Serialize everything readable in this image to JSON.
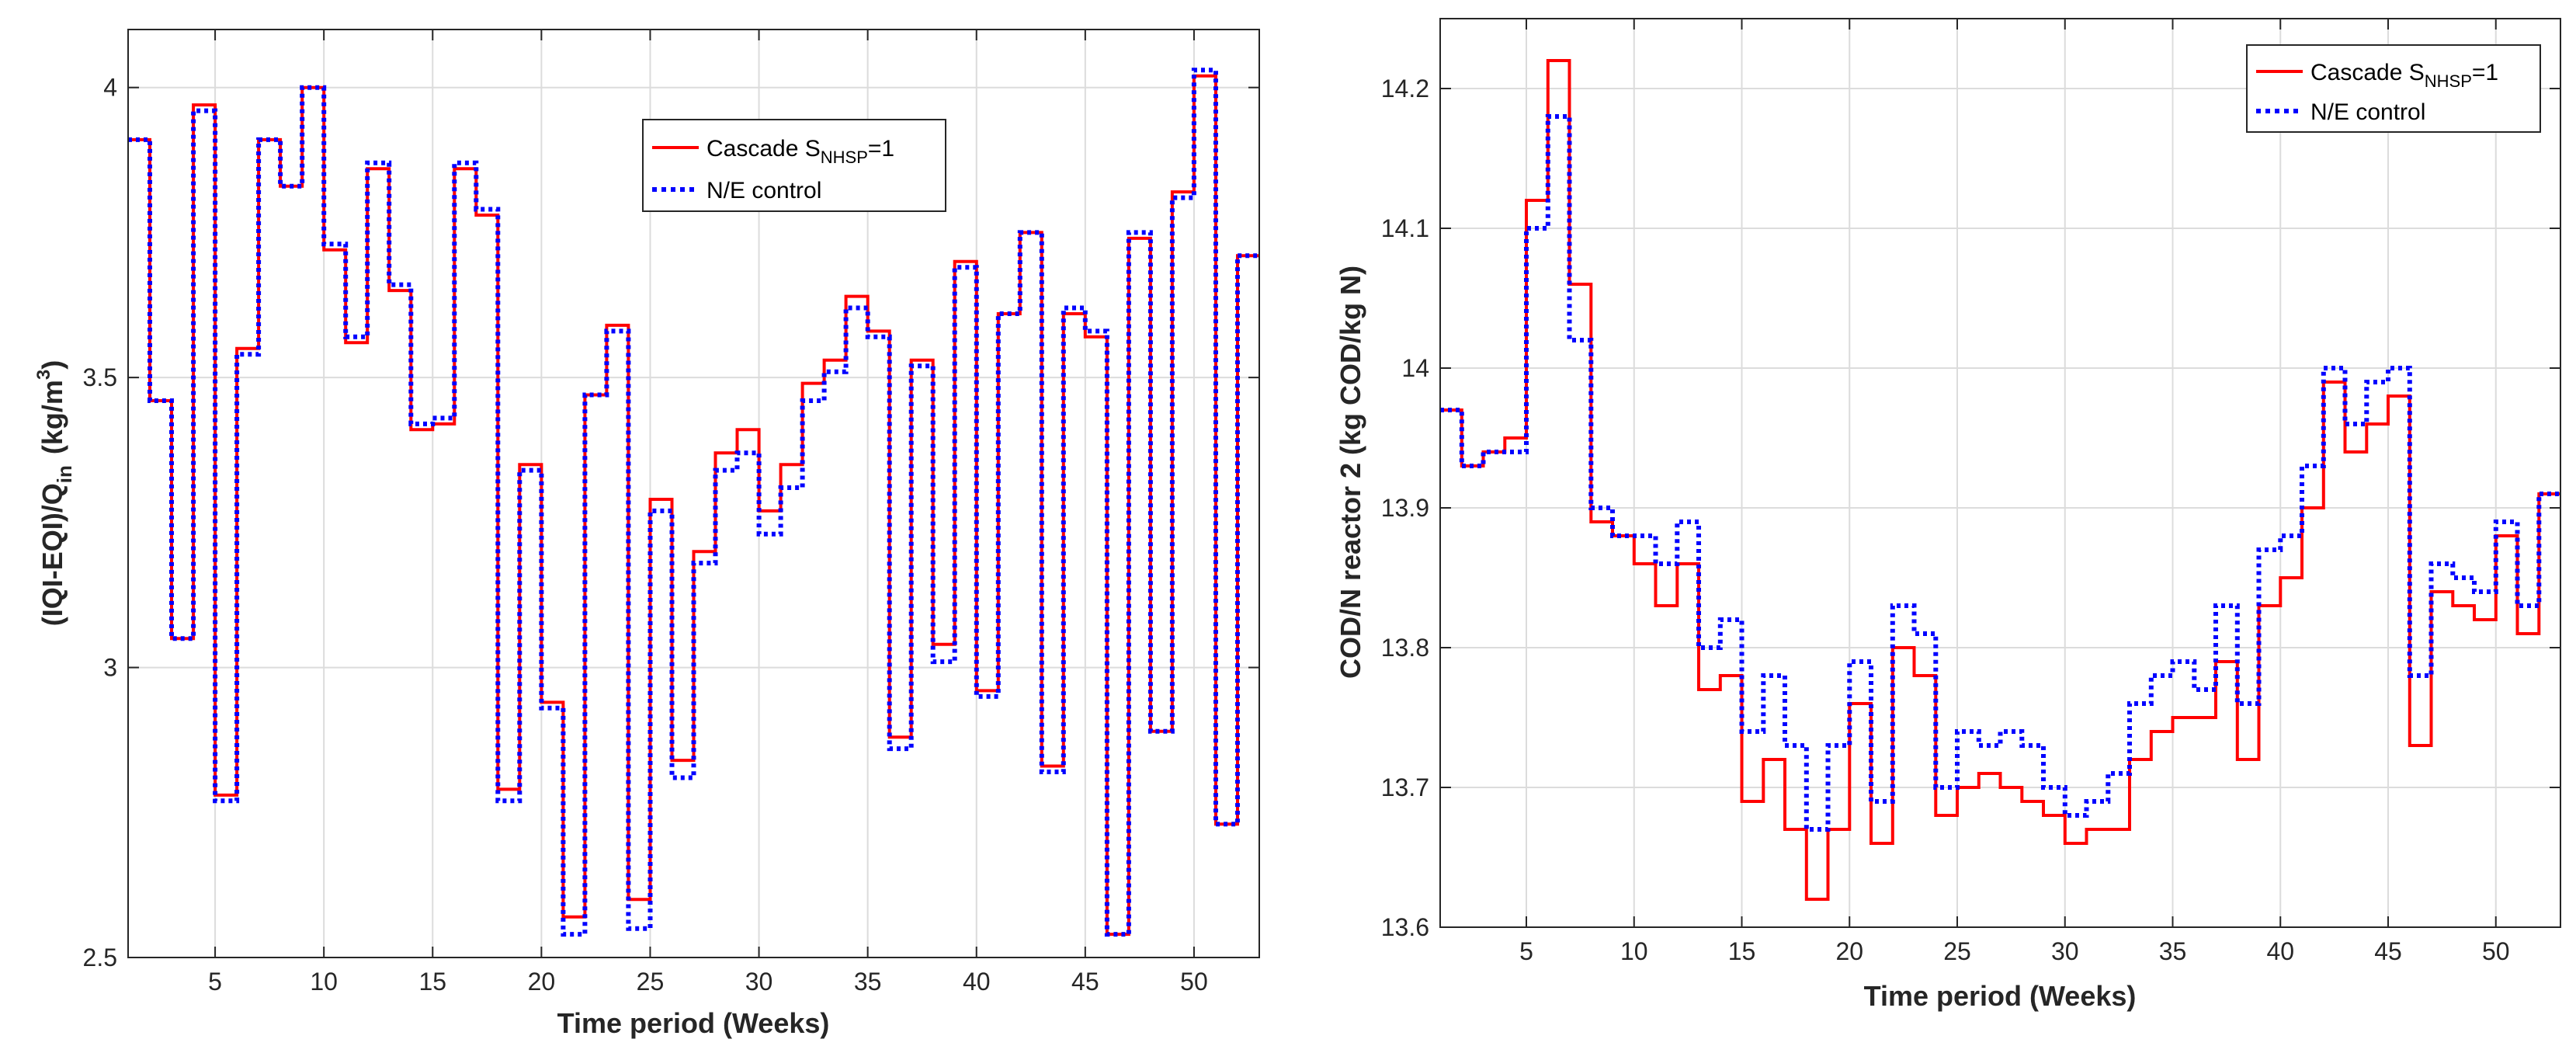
{
  "chart_data": [
    {
      "type": "line",
      "step": true,
      "title": "",
      "xlabel": "Time period (Weeks)",
      "ylabel": "(IQI-EQI)/Q_in (kg/m^3)",
      "ylabel_parts": {
        "main": "(IQI-EQI)/Q",
        "sub": "in",
        "unit_pre": "(kg/m",
        "sup": "3",
        "unit_post": ")"
      },
      "xlim": [
        1,
        53
      ],
      "ylim": [
        2.5,
        4.1
      ],
      "xticks": [
        5,
        10,
        15,
        20,
        25,
        30,
        35,
        40,
        45,
        50
      ],
      "xtick_labels": [
        "5",
        "10",
        "15",
        "20",
        "25",
        "30",
        "35",
        "40",
        "45",
        "50"
      ],
      "yticks": [
        2.5,
        3,
        3.5,
        4
      ],
      "ytick_labels": [
        "2.5",
        "3",
        "3.5",
        "4"
      ],
      "grid": true,
      "legend_position": "upper-center-right",
      "legend_labels": {
        "cascade_main": "Cascade S",
        "cascade_sub": "NHSP",
        "cascade_post": "=1",
        "ne": "N/E control"
      },
      "x": [
        1,
        2,
        3,
        4,
        5,
        6,
        7,
        8,
        9,
        10,
        11,
        12,
        13,
        14,
        15,
        16,
        17,
        18,
        19,
        20,
        21,
        22,
        23,
        24,
        25,
        26,
        27,
        28,
        29,
        30,
        31,
        32,
        33,
        34,
        35,
        36,
        37,
        38,
        39,
        40,
        41,
        42,
        43,
        44,
        45,
        46,
        47,
        48,
        49,
        50,
        51,
        52
      ],
      "series": [
        {
          "name": "Cascade S_NHSP=1",
          "color": "#ff0000",
          "dash": "solid",
          "values": [
            3.91,
            3.46,
            3.05,
            3.97,
            2.78,
            3.55,
            3.91,
            3.83,
            4.0,
            3.72,
            3.56,
            3.86,
            3.65,
            3.41,
            3.42,
            3.86,
            3.78,
            2.79,
            3.35,
            2.94,
            2.57,
            3.47,
            3.59,
            2.6,
            3.29,
            2.84,
            3.2,
            3.37,
            3.41,
            3.27,
            3.35,
            3.49,
            3.53,
            3.64,
            3.58,
            2.88,
            3.53,
            3.04,
            3.7,
            2.96,
            3.61,
            3.75,
            2.83,
            3.61,
            3.57,
            2.54,
            3.74,
            2.89,
            3.82,
            4.02,
            2.73,
            3.71
          ]
        },
        {
          "name": "N/E control",
          "color": "#0000ff",
          "dash": "dotted",
          "values": [
            3.91,
            3.46,
            3.05,
            3.96,
            2.77,
            3.54,
            3.91,
            3.83,
            4.0,
            3.73,
            3.57,
            3.87,
            3.66,
            3.42,
            3.43,
            3.87,
            3.79,
            2.77,
            3.34,
            2.93,
            2.54,
            3.47,
            3.58,
            2.55,
            3.27,
            2.81,
            3.18,
            3.34,
            3.37,
            3.23,
            3.31,
            3.46,
            3.51,
            3.62,
            3.57,
            2.86,
            3.52,
            3.01,
            3.69,
            2.95,
            3.61,
            3.75,
            2.82,
            3.62,
            3.58,
            2.54,
            3.75,
            2.89,
            3.81,
            4.03,
            2.73,
            3.71
          ]
        }
      ]
    },
    {
      "type": "line",
      "step": true,
      "title": "",
      "xlabel": "Time period (Weeks)",
      "ylabel": "COD/N reactor 2 (kg COD/kg N)",
      "xlim": [
        1,
        53
      ],
      "ylim": [
        13.6,
        14.25
      ],
      "xticks": [
        5,
        10,
        15,
        20,
        25,
        30,
        35,
        40,
        45,
        50
      ],
      "xtick_labels": [
        "5",
        "10",
        "15",
        "20",
        "25",
        "30",
        "35",
        "40",
        "45",
        "50"
      ],
      "yticks": [
        13.6,
        13.7,
        13.8,
        13.9,
        14.0,
        14.1,
        14.2
      ],
      "ytick_labels": [
        "13.6",
        "13.7",
        "13.8",
        "13.9",
        "14",
        "14.1",
        "14.2"
      ],
      "grid": true,
      "legend_position": "top-right",
      "legend_labels": {
        "cascade_main": "Cascade S",
        "cascade_sub": "NHSP",
        "cascade_post": "=1",
        "ne": "N/E control"
      },
      "x": [
        1,
        2,
        3,
        4,
        5,
        6,
        7,
        8,
        9,
        10,
        11,
        12,
        13,
        14,
        15,
        16,
        17,
        18,
        19,
        20,
        21,
        22,
        23,
        24,
        25,
        26,
        27,
        28,
        29,
        30,
        31,
        32,
        33,
        34,
        35,
        36,
        37,
        38,
        39,
        40,
        41,
        42,
        43,
        44,
        45,
        46,
        47,
        48,
        49,
        50,
        51,
        52
      ],
      "series": [
        {
          "name": "Cascade S_NHSP=1",
          "color": "#ff0000",
          "dash": "solid",
          "values": [
            13.97,
            13.93,
            13.94,
            13.95,
            14.12,
            14.22,
            14.06,
            13.89,
            13.88,
            13.86,
            13.83,
            13.86,
            13.77,
            13.78,
            13.69,
            13.72,
            13.67,
            13.62,
            13.67,
            13.76,
            13.66,
            13.8,
            13.78,
            13.68,
            13.7,
            13.71,
            13.7,
            13.69,
            13.68,
            13.66,
            13.67,
            13.67,
            13.72,
            13.74,
            13.75,
            13.75,
            13.79,
            13.72,
            13.83,
            13.85,
            13.9,
            13.99,
            13.94,
            13.96,
            13.98,
            13.73,
            13.84,
            13.83,
            13.82,
            13.88,
            13.81,
            13.91
          ]
        },
        {
          "name": "N/E control",
          "color": "#0000ff",
          "dash": "dotted",
          "values": [
            13.97,
            13.93,
            13.94,
            13.94,
            14.1,
            14.18,
            14.02,
            13.9,
            13.88,
            13.88,
            13.86,
            13.89,
            13.8,
            13.82,
            13.74,
            13.78,
            13.73,
            13.67,
            13.73,
            13.79,
            13.69,
            13.83,
            13.81,
            13.7,
            13.74,
            13.73,
            13.74,
            13.73,
            13.7,
            13.68,
            13.69,
            13.71,
            13.76,
            13.78,
            13.79,
            13.77,
            13.83,
            13.76,
            13.87,
            13.88,
            13.93,
            14.0,
            13.96,
            13.99,
            14.0,
            13.78,
            13.86,
            13.85,
            13.84,
            13.89,
            13.83,
            13.91
          ]
        }
      ]
    }
  ]
}
